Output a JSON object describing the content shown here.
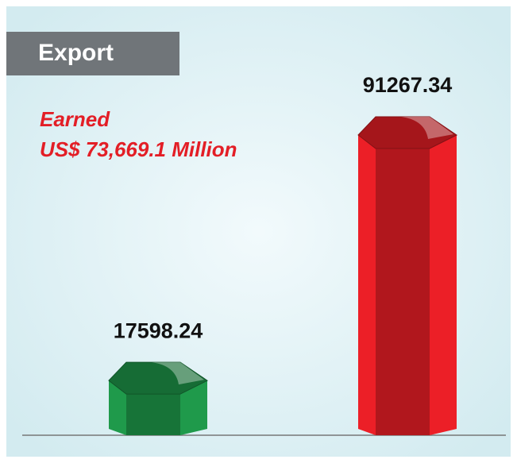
{
  "chart_data": {
    "type": "bar",
    "title": "Export",
    "annotation": [
      "Earned",
      "US$ 73,669.1 Million"
    ],
    "categories": [
      null,
      null
    ],
    "values": [
      17598.24,
      91267.34
    ],
    "colors": [
      "#1f9a4b",
      "#ec1f27"
    ]
  }
}
